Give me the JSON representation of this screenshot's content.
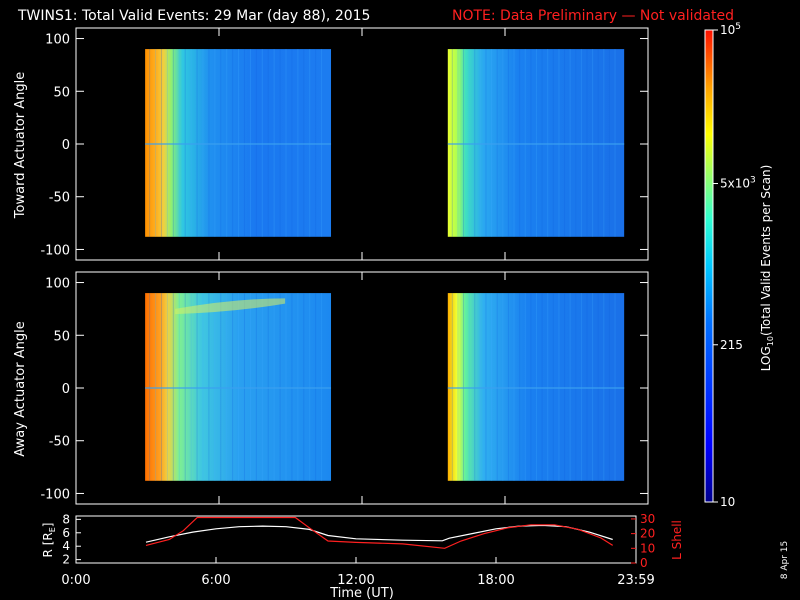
{
  "header": {
    "title": "TWINS1: Total Valid Events: 29 Mar (day  88), 2015",
    "note": "NOTE: Data Preliminary — Not validated",
    "note_color": "#ff2020"
  },
  "side_date": "8 Apr 15",
  "colorbar": {
    "label": "LOG10(Total Valid Events per Scan)",
    "label_main": "LOG",
    "label_sub": "10",
    "label_rest": "(Total Valid Events per Scan)",
    "ticks": [
      {
        "value": 100000,
        "label": "10",
        "sup": "5"
      },
      {
        "value": 5000,
        "label": "5x10",
        "sup": "3"
      },
      {
        "value": 215,
        "label": "215",
        "sup": ""
      },
      {
        "value": 10,
        "label": "10",
        "sup": ""
      }
    ],
    "range": [
      10,
      100000
    ],
    "scale": "log"
  },
  "chart_data": [
    {
      "type": "heatmap",
      "name": "toward",
      "ylabel": "Toward Actuator Angle",
      "ylim": [
        -110,
        110
      ],
      "yticks": [
        100,
        50,
        0,
        -50,
        -100
      ],
      "ytick_labels": [
        "100",
        "50",
        "0",
        "-50",
        "-100"
      ],
      "xlim_hours": [
        0,
        24
      ],
      "blocks": [
        {
          "t_start": 2.9,
          "t_end": 10.7,
          "y_min": -88,
          "y_max": 90
        },
        {
          "t_start": 15.6,
          "t_end": 23.0,
          "y_min": -88,
          "y_max": 90
        }
      ]
    },
    {
      "type": "heatmap",
      "name": "away",
      "ylabel": "Away Actuator Angle",
      "ylim": [
        -110,
        110
      ],
      "yticks": [
        100,
        50,
        0,
        -50,
        -100
      ],
      "ytick_labels": [
        "100",
        "50",
        "0",
        "-50",
        "-100"
      ],
      "xlim_hours": [
        0,
        24
      ],
      "blocks": [
        {
          "t_start": 2.9,
          "t_end": 10.7,
          "y_min": -88,
          "y_max": 90
        },
        {
          "t_start": 15.6,
          "t_end": 23.0,
          "y_min": -88,
          "y_max": 90
        }
      ]
    },
    {
      "type": "line",
      "name": "orbit",
      "ylabel_left": "R [RE]",
      "ylabel_left_main": "R [R",
      "ylabel_left_sub": "E",
      "ylabel_left_end": "]",
      "ylabel_right": "L Shell",
      "yticks_left": [
        8,
        6,
        4,
        2
      ],
      "yticks_right": [
        30,
        20,
        10,
        0
      ],
      "ylim_left": [
        1.5,
        8.5
      ],
      "ylim_right": [
        0,
        32
      ],
      "xlabel": "Time (UT)",
      "xticks": [
        "0:00",
        "6:00",
        "12:00",
        "18:00",
        "23:59"
      ],
      "xtick_hours": [
        0,
        6,
        12,
        18,
        24
      ],
      "series": [
        {
          "name": "R",
          "color": "#ffffff",
          "x": [
            3.0,
            4,
            5,
            6,
            7,
            8,
            9,
            10,
            10.8,
            12,
            14,
            15.7,
            16,
            17,
            18,
            19,
            20,
            21,
            22,
            23.0
          ],
          "y": [
            4.6,
            5.4,
            6.1,
            6.6,
            6.9,
            7.0,
            6.9,
            6.5,
            5.6,
            5.1,
            4.9,
            4.8,
            5.2,
            5.9,
            6.6,
            7.0,
            7.1,
            6.9,
            6.1,
            5.0
          ]
        },
        {
          "name": "L Shell",
          "color": "#ff2020",
          "x": [
            3.0,
            4,
            4.6,
            5.2,
            9.4,
            10.0,
            10.8,
            12,
            14,
            15.8,
            16.5,
            17.5,
            18.5,
            19.5,
            20.5,
            21.5,
            22.5,
            23.0
          ],
          "y": [
            12,
            16,
            22,
            31,
            31,
            24,
            15,
            14,
            13,
            10,
            15,
            20,
            24,
            26,
            26,
            23,
            17,
            12
          ]
        }
      ]
    }
  ]
}
